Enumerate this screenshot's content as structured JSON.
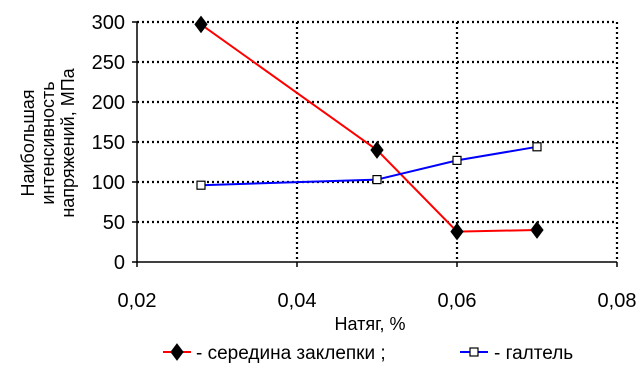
{
  "chart_data": {
    "type": "line",
    "title": "",
    "xlabel": "Натяг, %",
    "ylabel_lines": [
      "Наибольшая",
      "интенсивность",
      "напряжений, МПа"
    ],
    "xlim": [
      0.02,
      0.08
    ],
    "ylim": [
      0,
      300
    ],
    "x_ticks": [
      0.02,
      0.04,
      0.06,
      0.08
    ],
    "x_tick_labels": [
      "0,02",
      "0,04",
      "0,06",
      "0,08"
    ],
    "y_ticks": [
      0,
      50,
      100,
      150,
      200,
      250,
      300
    ],
    "y_tick_labels": [
      "0",
      "50",
      "100",
      "150",
      "200",
      "250",
      "300"
    ],
    "grid": "dotted",
    "legend_position": "bottom",
    "series": [
      {
        "name": "- середина заклепки ;",
        "color": "#ff0000",
        "marker": "filled-diamond",
        "marker_color": "#000000",
        "x": [
          0.028,
          0.05,
          0.06,
          0.07
        ],
        "y": [
          297,
          140,
          38,
          40
        ]
      },
      {
        "name": "- галтель",
        "color": "#0000ff",
        "marker": "open-square",
        "marker_color": "#000000",
        "x": [
          0.028,
          0.05,
          0.06,
          0.07
        ],
        "y": [
          96,
          103,
          127,
          144
        ]
      }
    ]
  }
}
